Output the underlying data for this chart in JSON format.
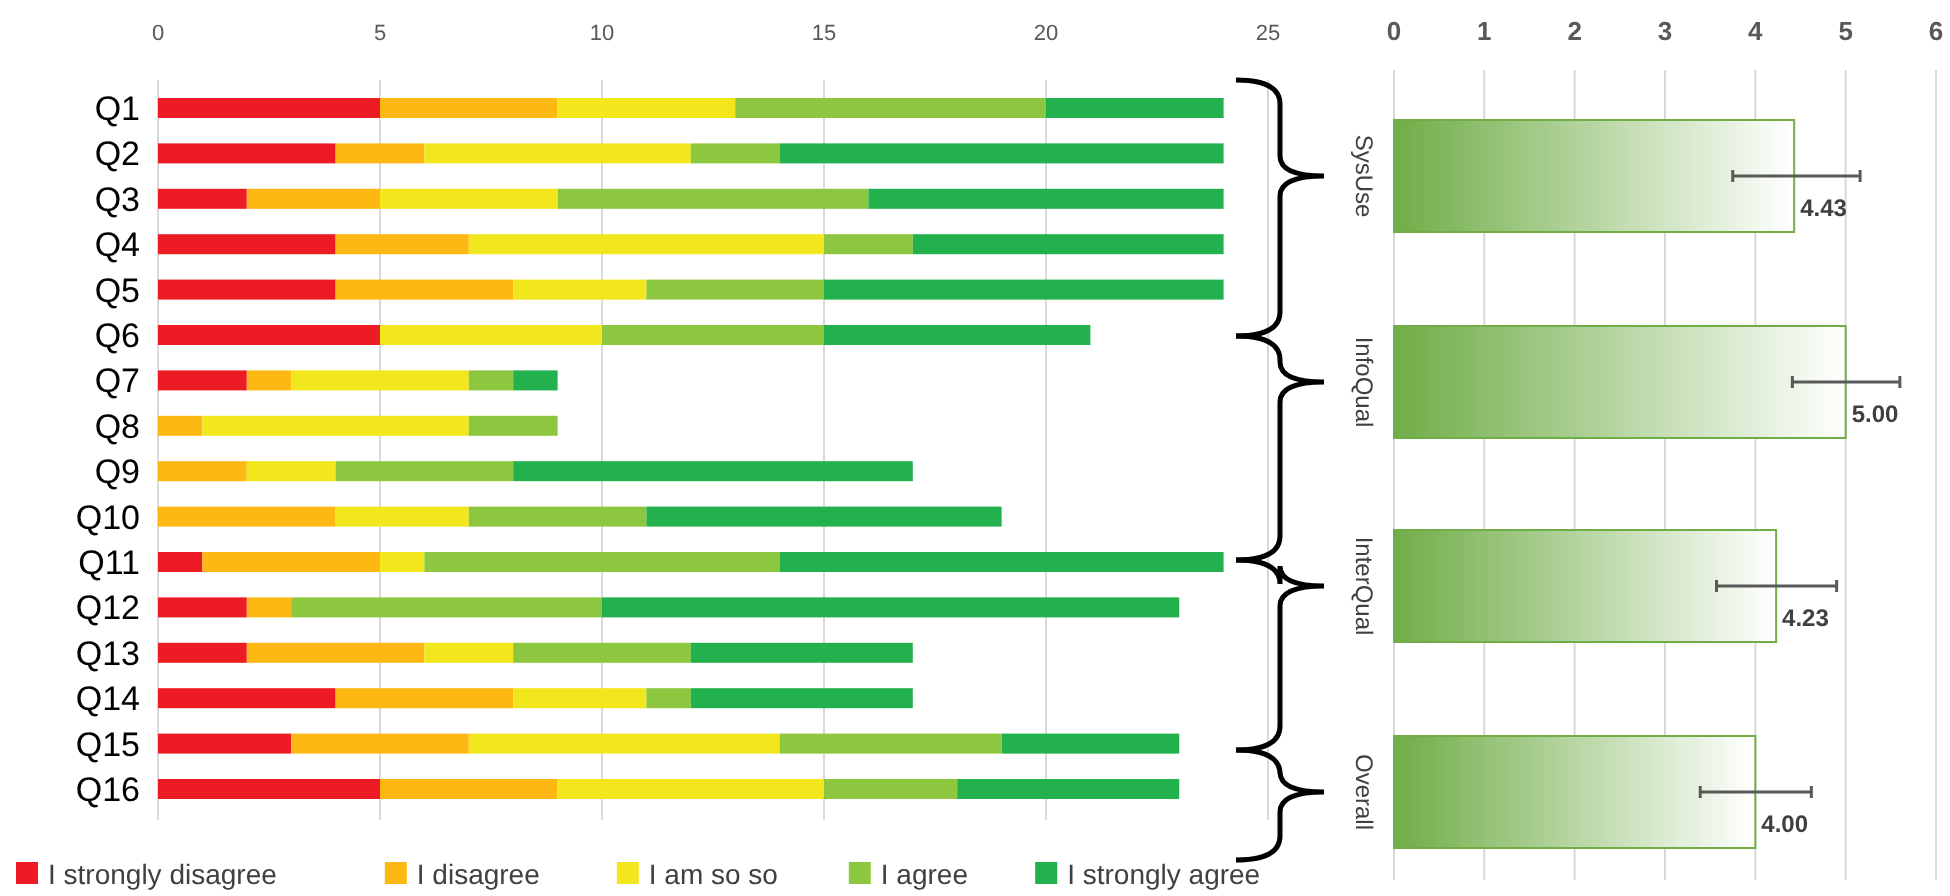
{
  "chart_data": [
    {
      "type": "bar",
      "orientation": "horizontal",
      "stacked": true,
      "categories": [
        "Q1",
        "Q2",
        "Q3",
        "Q4",
        "Q5",
        "Q6",
        "Q7",
        "Q8",
        "Q9",
        "Q10",
        "Q11",
        "Q12",
        "Q13",
        "Q14",
        "Q15",
        "Q16"
      ],
      "series": [
        {
          "name": "I strongly disagree",
          "color": "#ed1c24",
          "values": [
            5,
            4,
            2,
            4,
            4,
            5,
            2,
            0,
            0,
            0,
            1,
            2,
            2,
            4,
            3,
            5
          ]
        },
        {
          "name": "I disagree",
          "color": "#fdb813",
          "values": [
            4,
            2,
            3,
            3,
            4,
            0,
            1,
            1,
            2,
            4,
            4,
            1,
            4,
            4,
            4,
            4
          ]
        },
        {
          "name": "I am so so",
          "color": "#f2e61c",
          "values": [
            4,
            6,
            4,
            8,
            3,
            5,
            4,
            6,
            2,
            3,
            1,
            0,
            2,
            3,
            7,
            6
          ]
        },
        {
          "name": "I agree",
          "color": "#8dc63f",
          "values": [
            7,
            2,
            7,
            2,
            4,
            5,
            1,
            2,
            4,
            4,
            8,
            7,
            4,
            1,
            5,
            3
          ]
        },
        {
          "name": "I strongly agree",
          "color": "#22b14c",
          "values": [
            4,
            10,
            8,
            7,
            9,
            6,
            1,
            0,
            9,
            8,
            10,
            13,
            5,
            5,
            4,
            5
          ]
        }
      ],
      "xlim": [
        0,
        25
      ],
      "xticks": [
        0,
        5,
        10,
        15,
        20,
        25
      ],
      "grid": "x",
      "legend": "bottom"
    },
    {
      "type": "bar",
      "orientation": "horizontal",
      "categories": [
        "SysUse",
        "InfoQual",
        "InterQual",
        "Overall"
      ],
      "values": [
        4.43,
        5.0,
        4.23,
        4.0
      ],
      "value_labels": [
        "4.43",
        "5.00",
        "4.23",
        "4.00"
      ],
      "errors": [
        [
          3.75,
          5.16
        ],
        [
          4.41,
          5.6
        ],
        [
          3.57,
          4.9
        ],
        [
          3.39,
          4.62
        ]
      ],
      "color": "#70ad47",
      "xlim": [
        0,
        6
      ],
      "xticks": [
        0,
        1,
        2,
        3,
        4,
        5,
        6
      ],
      "grid": "x"
    }
  ]
}
